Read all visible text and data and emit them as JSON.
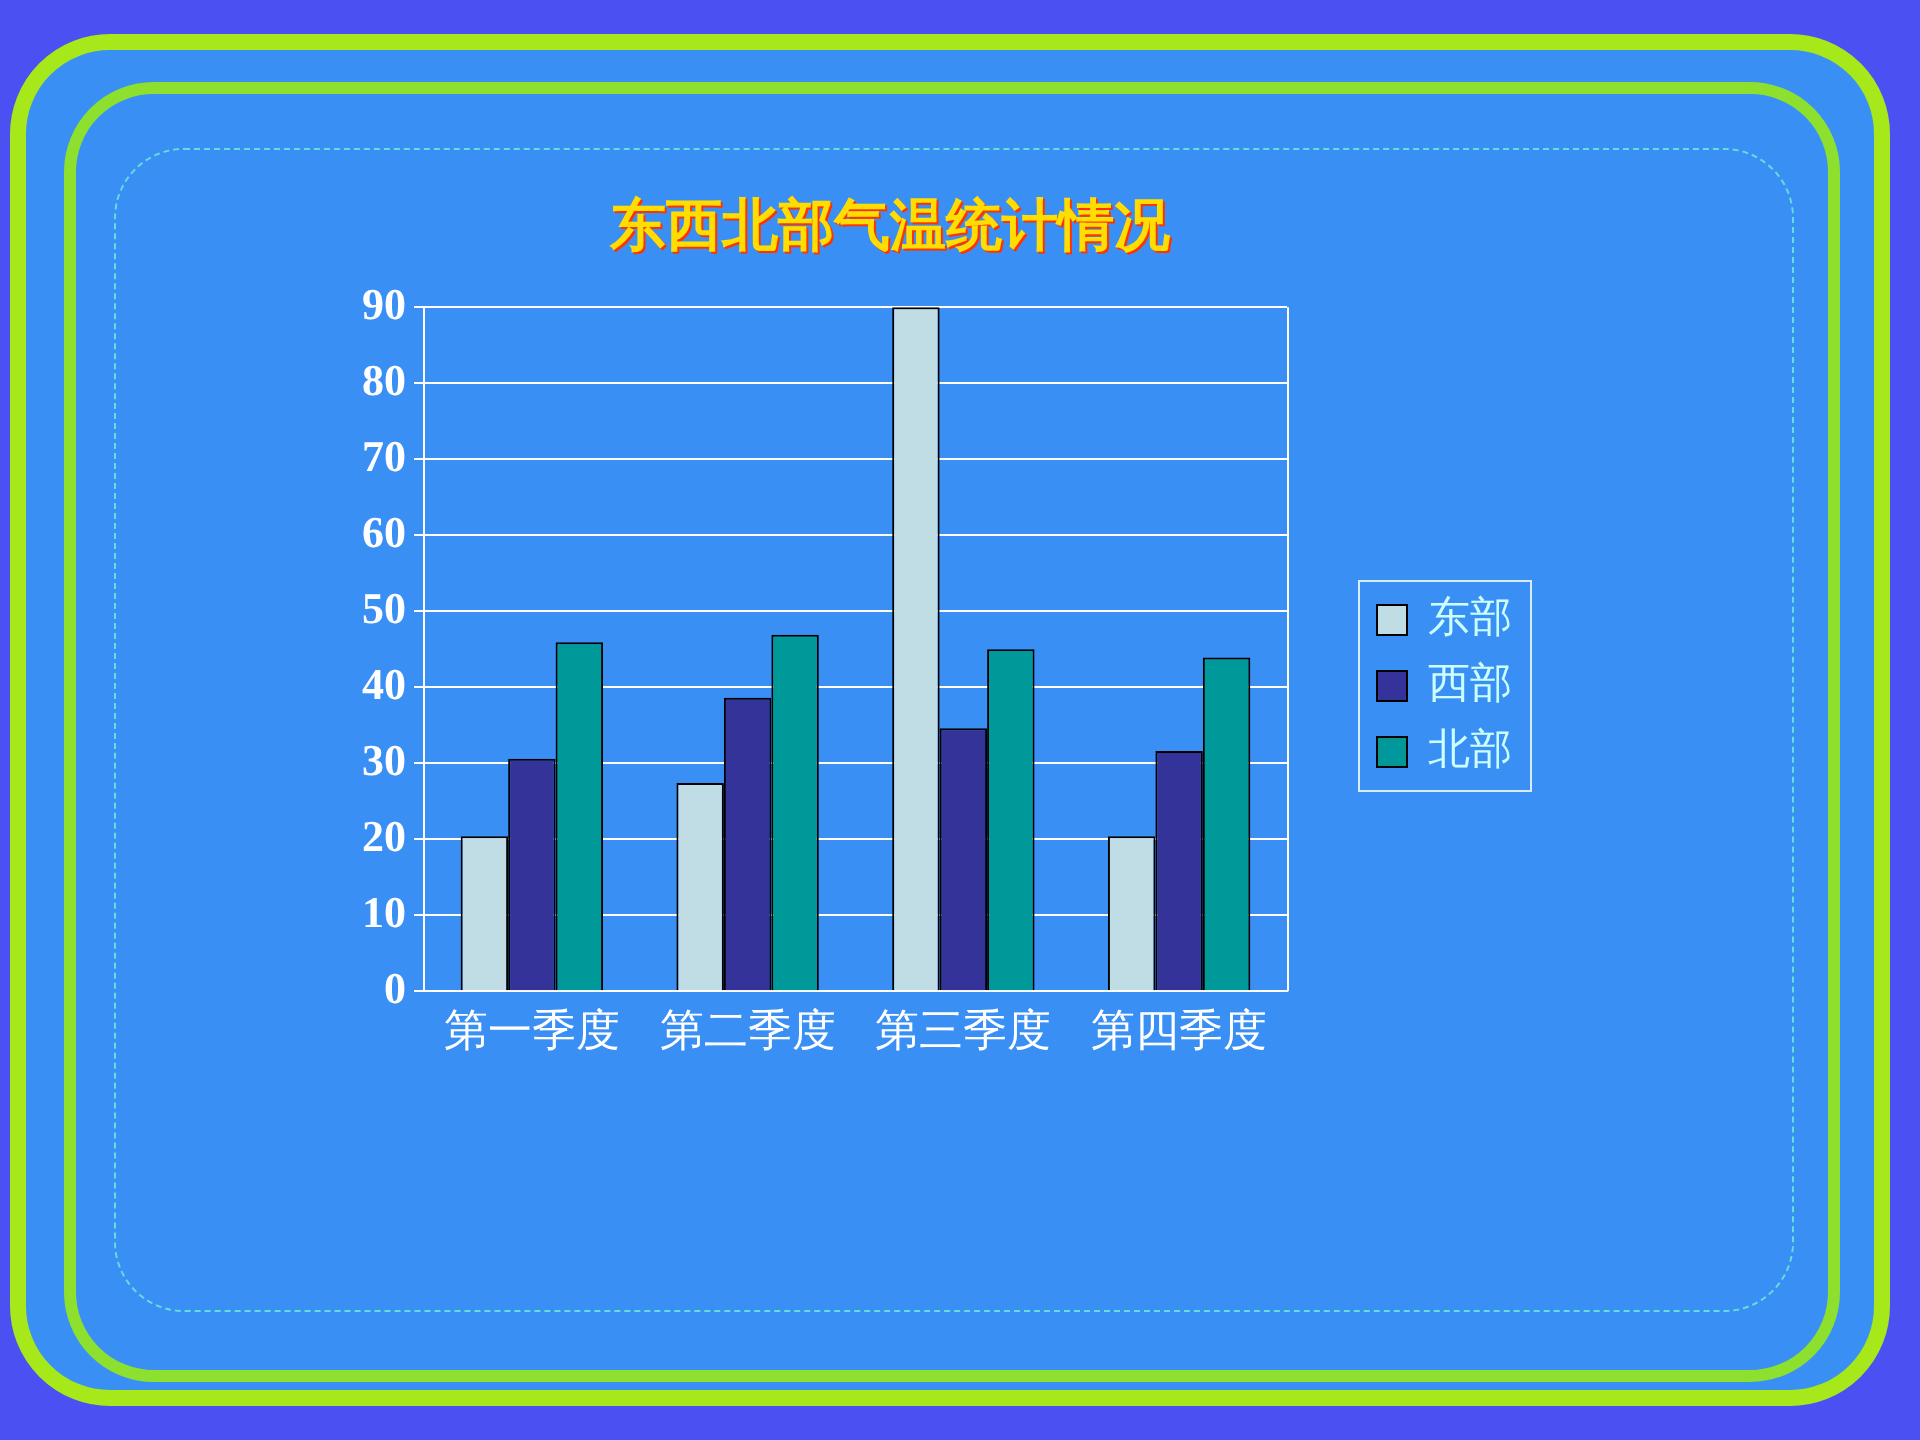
{
  "chart_data": {
    "type": "bar",
    "title": "东西北部气温统计情况",
    "categories": [
      "第一季度",
      "第二季度",
      "第三季度",
      "第四季度"
    ],
    "series": [
      {
        "name": "东部",
        "color": "#c0dce4",
        "values": [
          20.4,
          27.4,
          90,
          20.4
        ]
      },
      {
        "name": "西部",
        "color": "#333399",
        "values": [
          30.6,
          38.6,
          34.6,
          31.6
        ]
      },
      {
        "name": "北部",
        "color": "#009999",
        "values": [
          45.9,
          46.9,
          45,
          43.9
        ]
      }
    ],
    "ylim": [
      0,
      90
    ],
    "yticks": [
      0,
      10,
      20,
      30,
      40,
      50,
      60,
      70,
      80,
      90
    ],
    "grid": "y",
    "legend": "right"
  }
}
